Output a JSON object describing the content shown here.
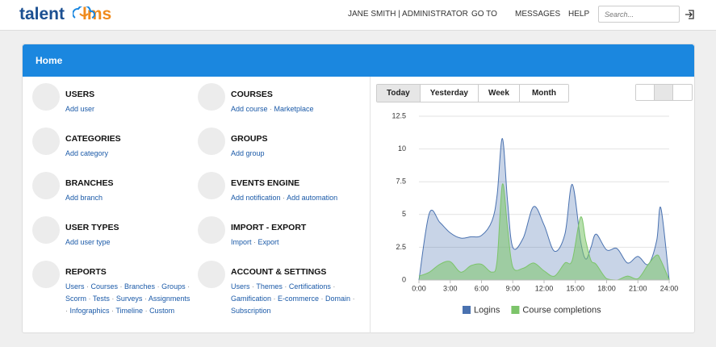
{
  "header": {
    "logo": [
      "talent",
      "lms"
    ],
    "user": "JANE SMITH | ADMINISTRATOR",
    "menu": [
      "GO TO",
      "MESSAGES",
      "HELP"
    ],
    "search_placeholder": "Search..."
  },
  "panel": {
    "title": "Home",
    "sections": [
      {
        "title": "USERS",
        "links": [
          "Add user"
        ]
      },
      {
        "title": "COURSES",
        "links": [
          "Add course",
          "Marketplace"
        ]
      },
      {
        "title": "CATEGORIES",
        "links": [
          "Add category"
        ]
      },
      {
        "title": "GROUPS",
        "links": [
          "Add group"
        ]
      },
      {
        "title": "BRANCHES",
        "links": [
          "Add branch"
        ]
      },
      {
        "title": "EVENTS ENGINE",
        "links": [
          "Add notification",
          "Add automation"
        ]
      },
      {
        "title": "USER TYPES",
        "links": [
          "Add user type"
        ]
      },
      {
        "title": "IMPORT - EXPORT",
        "links": [
          "Import",
          "Export"
        ]
      },
      {
        "title": "REPORTS",
        "links": [
          "Users",
          "Courses",
          "Branches",
          "Groups",
          "Scorm",
          "Tests",
          "Surveys",
          "Assignments",
          "Infographics",
          "Timeline",
          "Custom"
        ]
      },
      {
        "title": "ACCOUNT & SETTINGS",
        "links": [
          "Users",
          "Themes",
          "Certifications",
          "Gamification",
          "E-commerce",
          "Domain",
          "Subscription"
        ]
      }
    ],
    "tabs": [
      "Today",
      "Yesterday",
      "Week",
      "Month"
    ]
  },
  "chart_data": {
    "type": "area",
    "x": [
      0,
      1,
      2,
      3,
      4,
      5,
      6,
      7,
      7.5,
      8,
      8.5,
      9,
      10,
      11,
      12,
      13,
      14,
      14.7,
      15.5,
      16,
      16.5,
      17,
      18,
      19,
      20,
      21,
      22,
      22.8,
      23.2,
      24
    ],
    "series": [
      {
        "name": "Logins",
        "color": "#4a72b0",
        "values": [
          0,
          5.1,
          4.4,
          3.6,
          3.2,
          3.3,
          3.4,
          4.5,
          6.5,
          10.8,
          6,
          2.5,
          3.2,
          5.6,
          4.2,
          2.2,
          3.5,
          7.3,
          3,
          1.6,
          2.5,
          3.5,
          2.3,
          2.4,
          1.3,
          1.8,
          1.2,
          3,
          5.5,
          0
        ]
      },
      {
        "name": "Course completions",
        "color": "#7cc46a",
        "values": [
          0.3,
          0.6,
          1.2,
          1.4,
          0.6,
          1.1,
          1.2,
          0.6,
          1.5,
          7.3,
          4,
          1,
          0.9,
          1.3,
          0.7,
          0.3,
          1.3,
          1.5,
          4.8,
          3,
          1.5,
          1.2,
          0.1,
          0,
          0.3,
          0.1,
          1.2,
          1.9,
          1.5,
          0
        ]
      }
    ],
    "xlim": [
      0,
      24
    ],
    "xticks": [
      {
        "value": 0,
        "label": "0:00"
      },
      {
        "value": 3,
        "label": "3:00"
      },
      {
        "value": 6,
        "label": "6:00"
      },
      {
        "value": 9,
        "label": "9:00"
      },
      {
        "value": 12,
        "label": "12:00"
      },
      {
        "value": 15,
        "label": "15:00"
      },
      {
        "value": 18,
        "label": "18:00"
      },
      {
        "value": 21,
        "label": "21:00"
      },
      {
        "value": 24,
        "label": "24:00"
      }
    ],
    "ylim": [
      0,
      12.5
    ],
    "yticks": [
      0,
      2.5,
      5,
      7.5,
      10,
      12.5
    ],
    "grid": true
  }
}
